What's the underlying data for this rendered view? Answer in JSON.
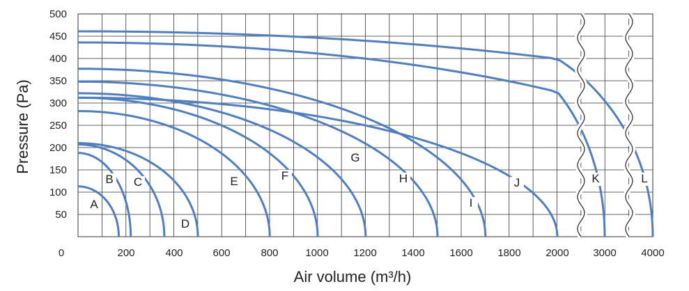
{
  "chart_data": {
    "type": "line",
    "xlabel": "Air volume (m³/h)",
    "ylabel": "Pressure (Pa)",
    "ylim": [
      0,
      500
    ],
    "grid": true,
    "x_ticks": [
      "0",
      "200",
      "400",
      "600",
      "800",
      "1000",
      "1200",
      "1400",
      "1600",
      "1800",
      "2000",
      "3000",
      "4000"
    ],
    "y_ticks": [
      "50",
      "100",
      "150",
      "200",
      "250",
      "300",
      "350",
      "400",
      "450",
      "500"
    ],
    "axis_break": "wavy lines between 2000 and 3000 and between 3000 and 4000",
    "line_color": "#4f7fc0",
    "grid_color": "#333333",
    "series": [
      {
        "name": "A",
        "max_pressure": 113,
        "max_air_volume": 170
      },
      {
        "name": "B",
        "max_pressure": 188,
        "max_air_volume": 220
      },
      {
        "name": "C",
        "max_pressure": 207,
        "max_air_volume": 360
      },
      {
        "name": "D",
        "max_pressure": 210,
        "max_air_volume": 500
      },
      {
        "name": "E",
        "max_pressure": 282,
        "max_air_volume": 800
      },
      {
        "name": "F",
        "max_pressure": 312,
        "max_air_volume": 1000
      },
      {
        "name": "G",
        "max_pressure": 322,
        "max_air_volume": 1200
      },
      {
        "name": "H",
        "max_pressure": 348,
        "max_air_volume": 1500
      },
      {
        "name": "I",
        "max_pressure": 377,
        "max_air_volume": 1700
      },
      {
        "name": "J",
        "max_pressure": 312,
        "max_air_volume": 2000
      },
      {
        "name": "K",
        "max_pressure": 436,
        "max_air_volume": 3000
      },
      {
        "name": "L",
        "max_pressure": 461,
        "max_air_volume": 4000
      }
    ]
  }
}
